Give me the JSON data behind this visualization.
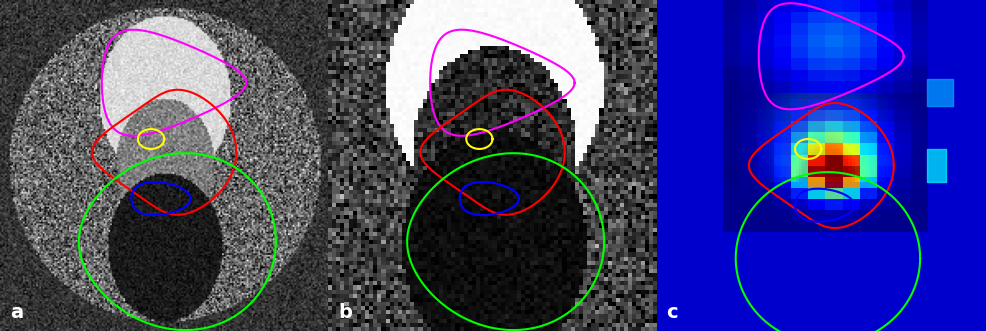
{
  "fig_width": 9.86,
  "fig_height": 3.31,
  "dpi": 100,
  "bg_color": "#000000",
  "panel_labels": [
    "a",
    "b",
    "c"
  ],
  "label_color": "#ffffff",
  "label_fontsize": 14,
  "contour_colors": {
    "magenta": "#ff00ff",
    "red": "#ff0000",
    "yellow": "#ffff00",
    "blue": "#0000ff",
    "green": "#00ff00"
  }
}
